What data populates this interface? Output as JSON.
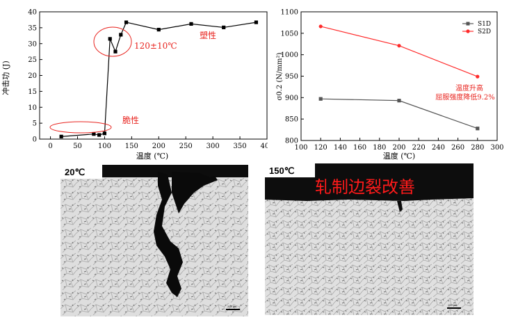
{
  "chart_data": [
    {
      "type": "scatter",
      "xlabel": "温度 (℃)",
      "ylabel": "冲击功 (J)",
      "xlim": [
        -20,
        400
      ],
      "ylim": [
        0,
        40
      ],
      "xticks": [
        0,
        50,
        100,
        150,
        200,
        250,
        300,
        350,
        400
      ],
      "yticks": [
        0,
        5,
        10,
        15,
        20,
        25,
        30,
        35,
        40
      ],
      "grid": false,
      "series": [
        {
          "x": [
            20,
            80,
            90,
            100,
            110,
            120,
            130,
            140,
            200,
            260,
            320,
            380
          ],
          "y": [
            0.8,
            1.6,
            1.3,
            1.8,
            31.5,
            27.5,
            32.8,
            36.7,
            34.4,
            36.2,
            35.1,
            36.7
          ]
        }
      ],
      "annotations": [
        {
          "text": "塑性",
          "x": 285,
          "y": 33
        },
        {
          "text": "120±10℃",
          "x": 120,
          "y": 24
        },
        {
          "text": "脆性",
          "x": 140,
          "y": 3
        }
      ]
    },
    {
      "type": "line",
      "xlabel": "温度 (℃)",
      "ylabel": "σ0.2 (N/mm²)",
      "xlim": [
        100,
        300
      ],
      "ylim": [
        800,
        1100
      ],
      "xticks": [
        100,
        120,
        140,
        160,
        180,
        200,
        220,
        240,
        260,
        280,
        300
      ],
      "yticks": [
        800,
        850,
        900,
        950,
        1000,
        1050,
        1100
      ],
      "grid": false,
      "legend": "top-right",
      "series": [
        {
          "name": "S1D",
          "color": "#555555",
          "x": [
            120,
            200,
            280
          ],
          "y": [
            897,
            893,
            828
          ]
        },
        {
          "name": "S2D",
          "color": "#ff2a2a",
          "x": [
            120,
            200,
            280
          ],
          "y": [
            1066,
            1021,
            949
          ]
        }
      ],
      "annotations": [
        {
          "text": "温度升高",
          "line2": "屈服强度降低9.2%"
        }
      ]
    }
  ],
  "photos": {
    "left_label": "20℃",
    "right_label": "150℃",
    "right_caption": "轧制边裂改善",
    "scalebar_left": "200 μm",
    "scalebar_right": "200 μm"
  },
  "colors": {
    "annotation": "#e8231e",
    "line": "#000000"
  }
}
